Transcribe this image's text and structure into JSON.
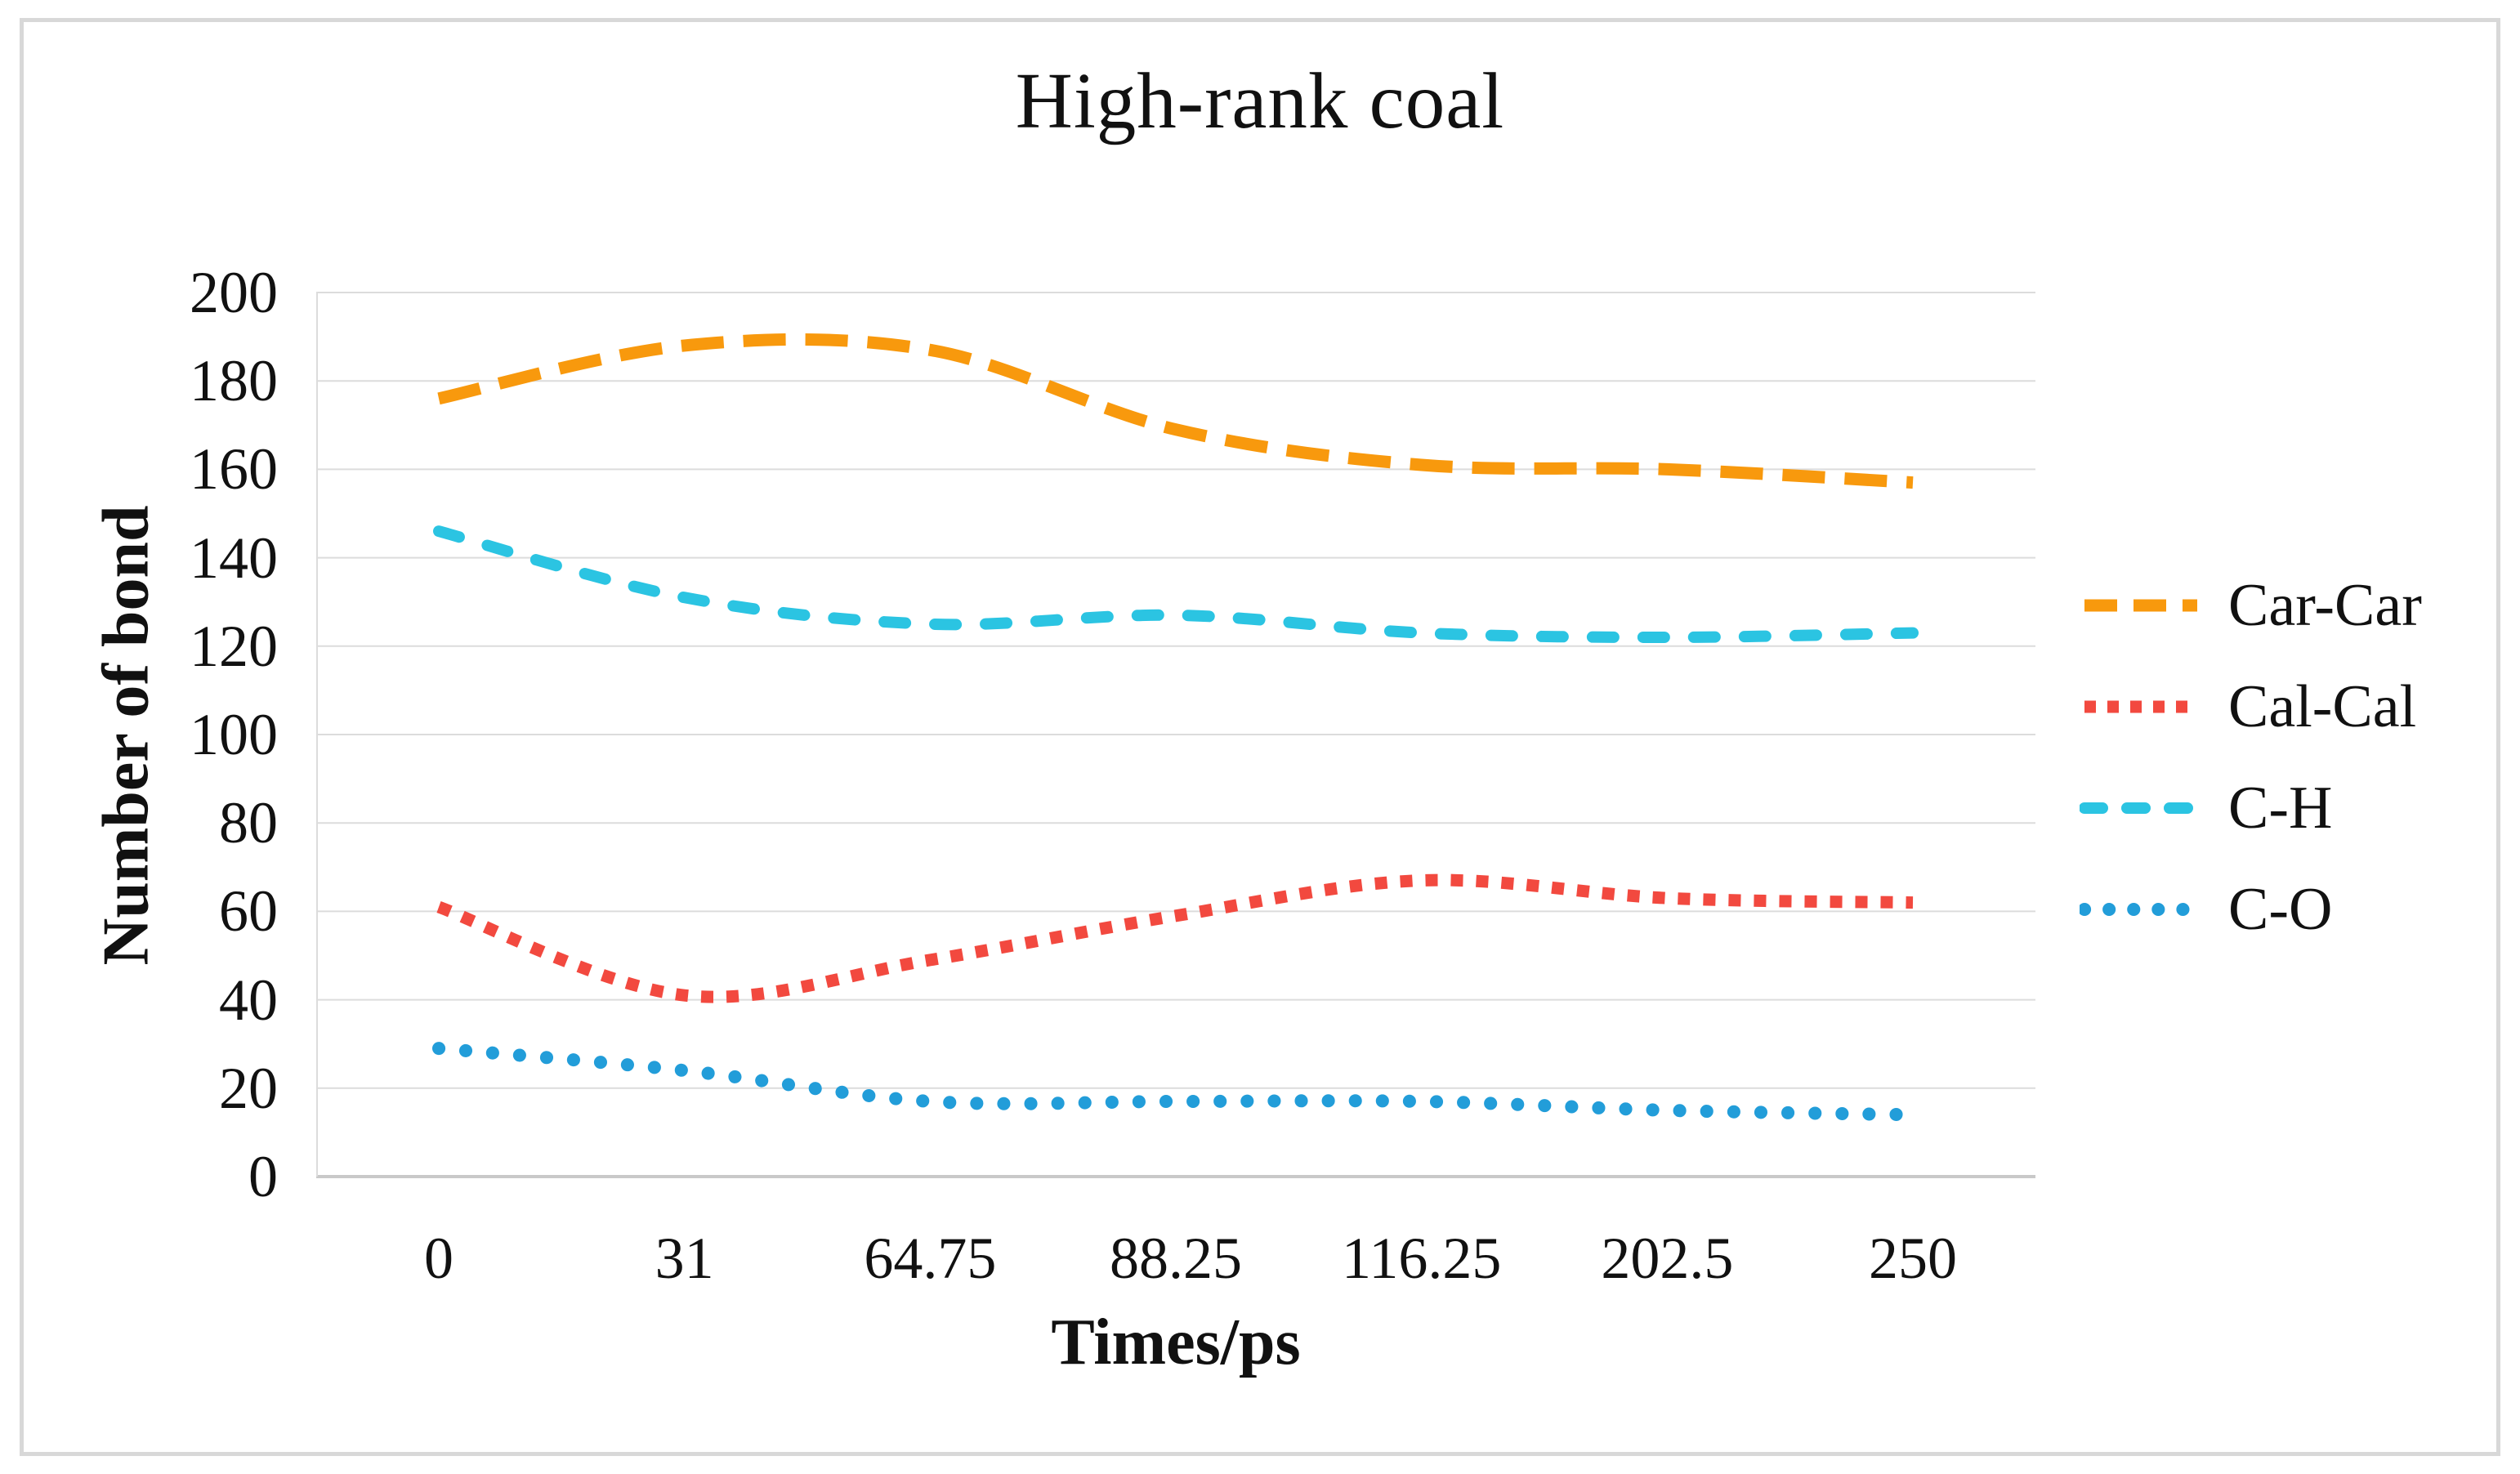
{
  "chart_data": {
    "type": "line",
    "title": "High-rank coal",
    "xlabel": "Times/ps",
    "ylabel": "Number of bond",
    "categories": [
      "0",
      "31",
      "64.75",
      "88.25",
      "116.25",
      "202.5",
      "250"
    ],
    "series": [
      {
        "name": "Car-Car",
        "color": "#F8990D",
        "line_style": "dash",
        "values": [
          176,
          188,
          187,
          169,
          161,
          160,
          157
        ]
      },
      {
        "name": "Cal-Cal",
        "color": "#F2493F",
        "line_style": "square-dot",
        "values": [
          61,
          41,
          49,
          59,
          67,
          63,
          62
        ]
      },
      {
        "name": "C-H",
        "color": "#2BC4E2",
        "line_style": "rounded-dash",
        "values": [
          146,
          131,
          125,
          127,
          123,
          122,
          123
        ]
      },
      {
        "name": "C-O",
        "color": "#229DD9",
        "line_style": "round-dot",
        "values": [
          29,
          24,
          17,
          17,
          17,
          15,
          14
        ]
      }
    ],
    "ylim": [
      0,
      200
    ],
    "ytick_step": 20,
    "yticks": [
      0,
      20,
      40,
      60,
      80,
      100,
      120,
      140,
      160,
      180,
      200
    ],
    "grid": "horizontal",
    "legend_position": "right",
    "smooth": true
  },
  "style": {
    "grid_color": "#DCDCDC",
    "axis_color": "#C9C9C9",
    "frame_color": "#D8D8D8",
    "text_color": "#111111",
    "background": "#FFFFFF"
  }
}
